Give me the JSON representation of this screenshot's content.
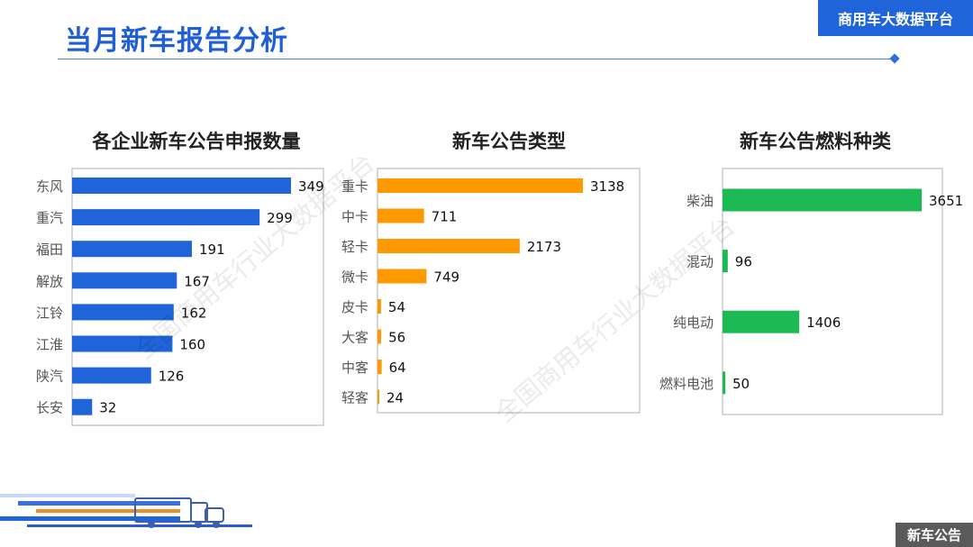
{
  "header": {
    "title": "当月新车报告分析",
    "platform": "商用车大数据平台"
  },
  "footer": {
    "badge": "新车公告"
  },
  "watermark": "全国商用车行业大数据平台",
  "colors": {
    "blue": "#1f64d8",
    "orange": "#ff9900",
    "green": "#1db954",
    "accent": "#1f5fd6"
  },
  "chart_data": [
    {
      "type": "bar",
      "orientation": "horizontal",
      "title": "各企业新车公告申报数量",
      "categories": [
        "东风",
        "重汽",
        "福田",
        "解放",
        "江铃",
        "江淮",
        "陕汽",
        "长安"
      ],
      "values": [
        349,
        299,
        191,
        167,
        162,
        160,
        126,
        32
      ],
      "color": "#1f64d8"
    },
    {
      "type": "bar",
      "orientation": "horizontal",
      "title": "新车公告类型",
      "categories": [
        "重卡",
        "中卡",
        "轻卡",
        "微卡",
        "皮卡",
        "大客",
        "中客",
        "轻客"
      ],
      "values": [
        3138,
        711,
        2173,
        749,
        54,
        56,
        64,
        24
      ],
      "color": "#ff9900"
    },
    {
      "type": "bar",
      "orientation": "horizontal",
      "title": "新车公告燃料种类",
      "categories": [
        "柴油",
        "混动",
        "纯电动",
        "燃料电池"
      ],
      "values": [
        3651,
        96,
        1406,
        50
      ],
      "color": "#1db954"
    }
  ]
}
